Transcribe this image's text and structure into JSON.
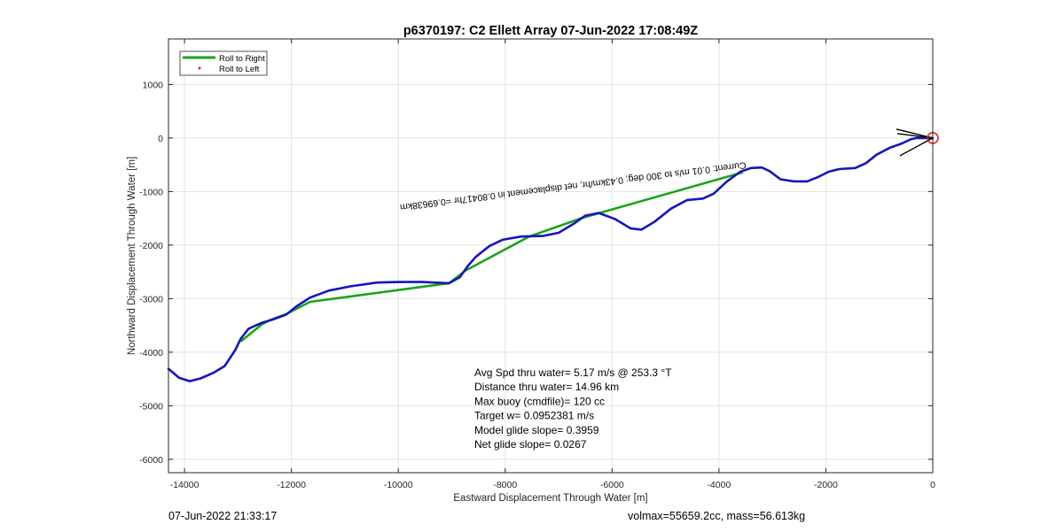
{
  "chart_data": {
    "type": "line",
    "title": "p6370197: C2 Ellett Array 07-Jun-2022 17:08:49Z",
    "xlabel": "Eastward Displacement Through Water [m]",
    "ylabel": "Northward Displacement Through Water [m]",
    "xlim": [
      -14300,
      0
    ],
    "ylim": [
      -6250,
      1850
    ],
    "xticks": [
      -14000,
      -12000,
      -10000,
      -8000,
      -6000,
      -4000,
      -2000,
      0
    ],
    "yticks": [
      1000,
      0,
      -1000,
      -2000,
      -3000,
      -4000,
      -5000,
      -6000
    ],
    "grid": true,
    "legend_position": "top-left",
    "legend": [
      {
        "label": "Roll to Right",
        "color": "#1aa41a",
        "style": "line"
      },
      {
        "label": "Roll to Left",
        "color": "#dd2222",
        "style": "dot"
      }
    ],
    "series": [
      {
        "name": "Roll to Right",
        "color": "#1aa41a",
        "x": [
          -12950,
          -12550,
          -12400,
          -12100,
          -11650,
          -9050,
          -8750,
          -7550,
          -6550,
          -3550
        ],
        "y": [
          -3800,
          -3480,
          -3400,
          -3290,
          -3060,
          -2710,
          -2480,
          -1840,
          -1490,
          -640
        ]
      },
      {
        "name": "track",
        "color": "#1515c0",
        "x": [
          -14300,
          -14100,
          -13900,
          -13700,
          -13450,
          -13250,
          -13050,
          -12950,
          -12800,
          -12550,
          -12350,
          -12100,
          -11900,
          -11650,
          -11300,
          -10900,
          -10400,
          -10000,
          -9550,
          -9050,
          -8850,
          -8700,
          -8550,
          -8300,
          -8050,
          -7700,
          -7300,
          -7000,
          -6700,
          -6500,
          -6250,
          -5950,
          -5650,
          -5450,
          -5200,
          -4900,
          -4600,
          -4300,
          -4100,
          -3850,
          -3600,
          -3400,
          -3200,
          -3050,
          -2850,
          -2600,
          -2350,
          -2150,
          -1950,
          -1750,
          -1450,
          -1250,
          -1050,
          -800,
          -600,
          -400,
          -300,
          0
        ],
        "y": [
          -4310,
          -4480,
          -4540,
          -4490,
          -4380,
          -4260,
          -3960,
          -3750,
          -3560,
          -3450,
          -3390,
          -3300,
          -3140,
          -2980,
          -2850,
          -2770,
          -2700,
          -2690,
          -2690,
          -2710,
          -2600,
          -2390,
          -2220,
          -2020,
          -1900,
          -1840,
          -1830,
          -1770,
          -1590,
          -1450,
          -1400,
          -1510,
          -1690,
          -1710,
          -1560,
          -1320,
          -1160,
          -1130,
          -1040,
          -810,
          -630,
          -560,
          -550,
          -620,
          -770,
          -810,
          -810,
          -730,
          -630,
          -580,
          -560,
          -470,
          -310,
          -180,
          -110,
          -20,
          0,
          0
        ]
      }
    ],
    "annotations": [
      {
        "text": "Avg Spd thru water=  5.17 m/s @ 253.3 °T"
      },
      {
        "text": "Distance thru water= 14.96 km"
      },
      {
        "text": "Max buoy (cmdfile)= 120 cc"
      },
      {
        "text": "Target w= 0.0952381 m/s"
      },
      {
        "text": "Model glide slope= 0.3959"
      },
      {
        "text": "Net glide slope= 0.0267"
      }
    ],
    "mirrored_label": {
      "text": "Current: 0.01 m/s to 300 deg; 0.43km/hr, net displacement in 0.80417hr =0.69638km",
      "x": -3500,
      "y": -450
    },
    "end_marker": {
      "x": 0,
      "y": 0
    }
  },
  "footer": {
    "left": "07-Jun-2022 21:33:17",
    "right": "volmax=55659.2cc, mass=56.613kg"
  }
}
